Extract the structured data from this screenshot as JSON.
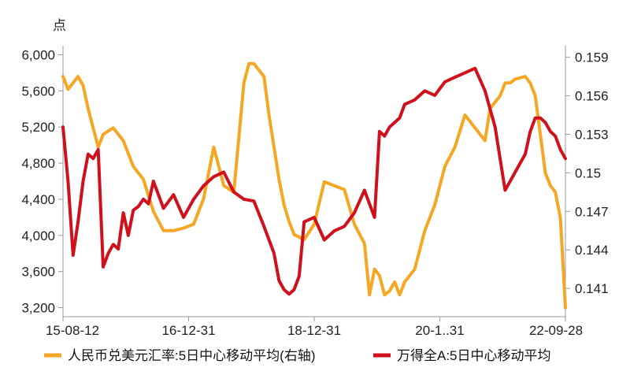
{
  "chart_data": {
    "type": "line",
    "left_unit": "点",
    "x_tick_labels": [
      "15-08-12",
      "16-12-31",
      "18-12-31",
      "20-1..31",
      "22-09-28"
    ],
    "y_left": {
      "ticks": [
        3200,
        3600,
        4000,
        4400,
        4800,
        5200,
        5600,
        6000
      ],
      "tick_labels": [
        "3,200",
        "3,600",
        "4,000",
        "4,400",
        "4,800",
        "5,200",
        "5,600",
        "6,000"
      ],
      "range": [
        3100,
        6100
      ]
    },
    "y_right": {
      "ticks": [
        0.141,
        0.144,
        0.147,
        0.15,
        0.153,
        0.156,
        0.159
      ],
      "tick_labels": [
        "0.141",
        "0.144",
        "0.147",
        "0.15",
        "0.153",
        "0.156",
        "0.159"
      ],
      "range": [
        0.1388,
        0.1599
      ]
    },
    "series": [
      {
        "name": "人民币兑美元汇率:5日中心移动平均(右轴)",
        "axis": "right",
        "color": "#F5A623",
        "t": [
          0,
          0.01,
          0.02,
          0.03,
          0.04,
          0.05,
          0.07,
          0.08,
          0.1,
          0.12,
          0.14,
          0.16,
          0.18,
          0.2,
          0.22,
          0.24,
          0.26,
          0.28,
          0.3,
          0.32,
          0.34,
          0.36,
          0.37,
          0.38,
          0.4,
          0.41,
          0.42,
          0.43,
          0.44,
          0.45,
          0.46,
          0.48,
          0.5,
          0.52,
          0.54,
          0.56,
          0.58,
          0.6,
          0.61,
          0.62,
          0.63,
          0.64,
          0.65,
          0.66,
          0.67,
          0.68,
          0.7,
          0.72,
          0.74,
          0.76,
          0.78,
          0.8,
          0.82,
          0.84,
          0.85,
          0.86,
          0.87,
          0.88,
          0.89,
          0.9,
          0.92,
          0.93,
          0.94,
          0.95,
          0.96,
          0.97,
          0.98,
          0.99,
          1
        ],
        "values": [
          0.1575,
          0.1565,
          0.157,
          0.1575,
          0.1568,
          0.155,
          0.152,
          0.153,
          0.1535,
          0.1525,
          0.1505,
          0.1495,
          0.147,
          0.1455,
          0.1455,
          0.1457,
          0.146,
          0.148,
          0.152,
          0.149,
          0.1485,
          0.157,
          0.1585,
          0.1585,
          0.1575,
          0.1545,
          0.152,
          0.1495,
          0.1475,
          0.1462,
          0.1452,
          0.1448,
          0.146,
          0.1493,
          0.149,
          0.1487,
          0.146,
          0.1445,
          0.1405,
          0.1425,
          0.142,
          0.1405,
          0.1408,
          0.1415,
          0.1405,
          0.1415,
          0.1425,
          0.1455,
          0.1475,
          0.1505,
          0.152,
          0.1545,
          0.1535,
          0.1525,
          0.155,
          0.1555,
          0.156,
          0.157,
          0.157,
          0.1573,
          0.1575,
          0.157,
          0.156,
          0.153,
          0.15,
          0.149,
          0.1485,
          0.1465,
          0.1395
        ]
      },
      {
        "name": "万得全A:5日中心移动平均",
        "axis": "left",
        "color": "#D0101B",
        "t": [
          0,
          0.01,
          0.02,
          0.03,
          0.04,
          0.05,
          0.06,
          0.07,
          0.08,
          0.09,
          0.1,
          0.11,
          0.12,
          0.13,
          0.14,
          0.15,
          0.16,
          0.17,
          0.18,
          0.2,
          0.22,
          0.24,
          0.26,
          0.28,
          0.3,
          0.32,
          0.34,
          0.36,
          0.38,
          0.4,
          0.42,
          0.43,
          0.44,
          0.45,
          0.46,
          0.47,
          0.48,
          0.5,
          0.52,
          0.54,
          0.56,
          0.58,
          0.6,
          0.62,
          0.63,
          0.64,
          0.65,
          0.66,
          0.67,
          0.68,
          0.7,
          0.72,
          0.74,
          0.76,
          0.78,
          0.8,
          0.82,
          0.84,
          0.86,
          0.88,
          0.9,
          0.92,
          0.93,
          0.94,
          0.95,
          0.96,
          0.97,
          0.98,
          0.99,
          1
        ],
        "values": [
          5200,
          4600,
          3780,
          4150,
          4600,
          4900,
          4850,
          4950,
          3650,
          3800,
          3900,
          3850,
          4250,
          4000,
          4280,
          4320,
          4400,
          4350,
          4600,
          4300,
          4450,
          4200,
          4400,
          4550,
          4650,
          4700,
          4480,
          4400,
          4380,
          4100,
          3800,
          3500,
          3400,
          3350,
          3400,
          3550,
          4150,
          4200,
          3950,
          4050,
          4100,
          4250,
          4500,
          4200,
          5150,
          5100,
          5200,
          5250,
          5300,
          5450,
          5500,
          5600,
          5550,
          5700,
          5750,
          5800,
          5850,
          5600,
          5200,
          4500,
          4700,
          4900,
          5150,
          5300,
          5300,
          5250,
          5150,
          5100,
          4950,
          4850
        ]
      }
    ]
  }
}
